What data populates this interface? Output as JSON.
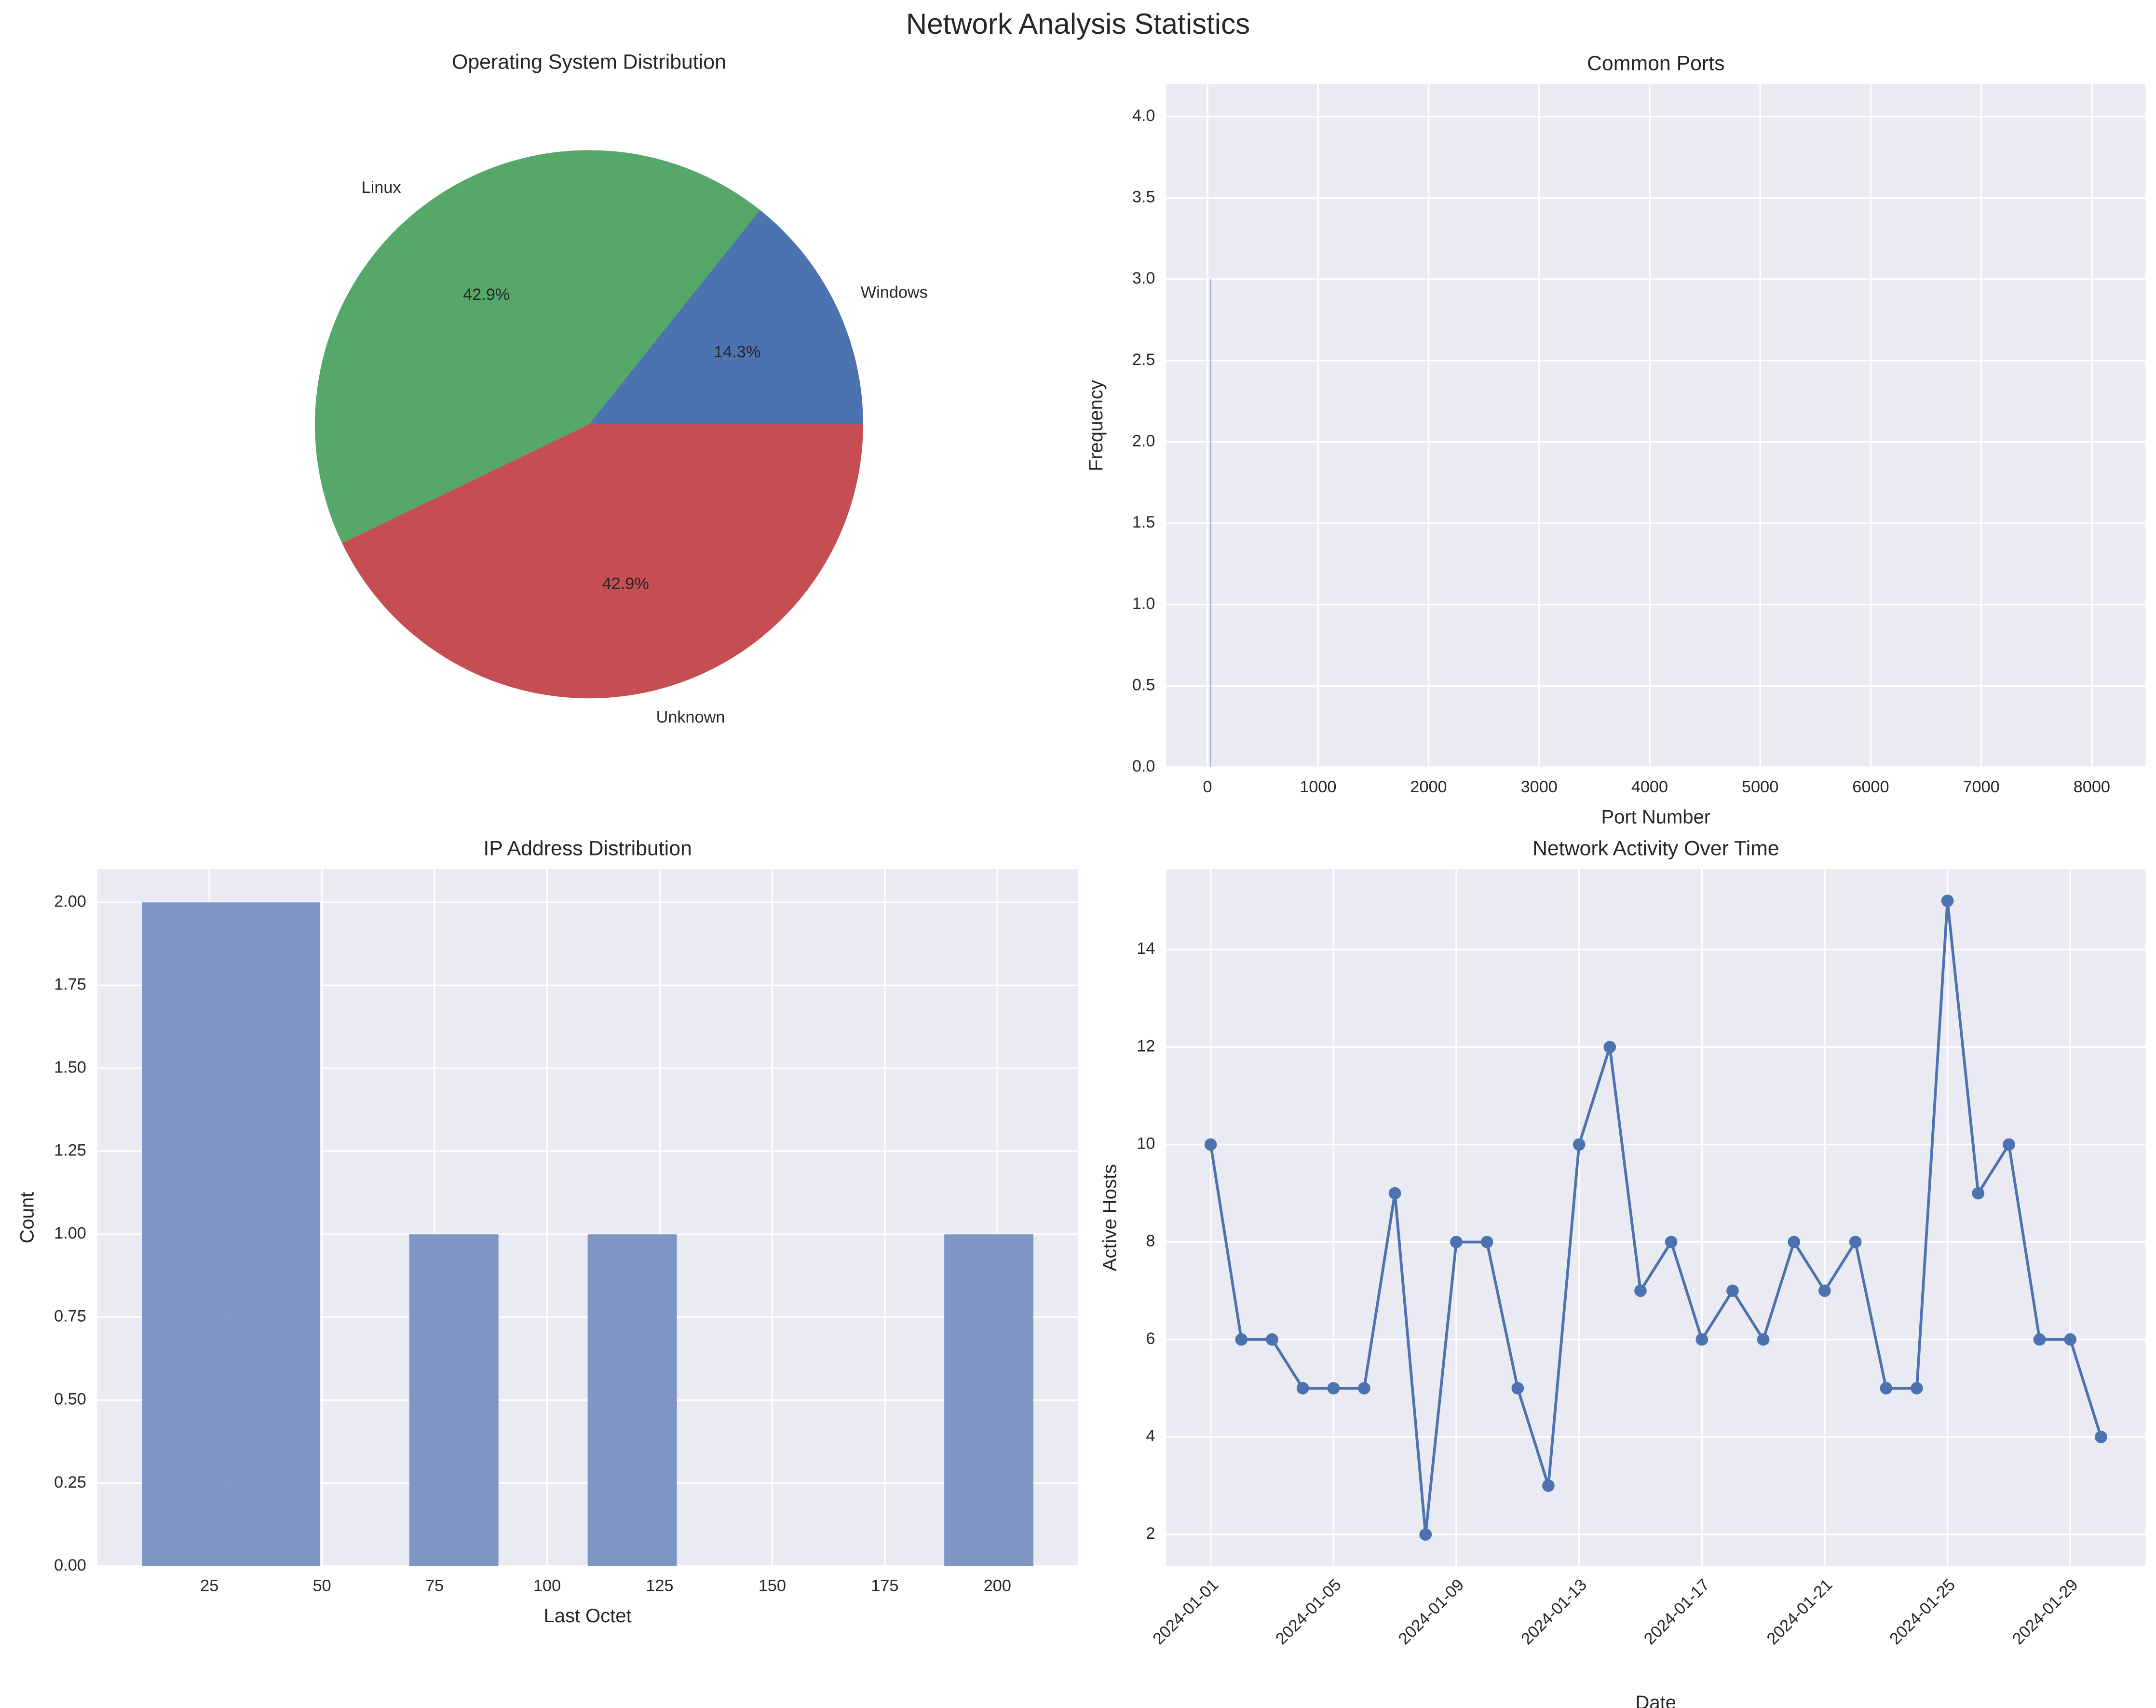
{
  "title": "Network Analysis Statistics",
  "chart_data": [
    {
      "type": "pie",
      "title": "Operating System Distribution",
      "categories": [
        "Windows",
        "Linux",
        "Unknown"
      ],
      "values": [
        14.3,
        42.9,
        42.9
      ],
      "value_labels": [
        "14.3%",
        "42.9%",
        "42.9%"
      ],
      "colors": [
        "#4c72b0",
        "#55a868",
        "#c44e52"
      ]
    },
    {
      "type": "histogram",
      "title": "Common Ports",
      "xlabel": "Port Number",
      "ylabel": "Frequency",
      "bins": [
        21,
        23
      ],
      "counts": [
        3
      ],
      "color": "#a3b1d6",
      "xlim": [
        -374,
        8486
      ],
      "xticks": [
        0,
        1000,
        2000,
        3000,
        4000,
        5000,
        6000,
        7000,
        8000
      ],
      "ylim": [
        0,
        4.2
      ],
      "yticks": [
        {
          "value": 0,
          "label": "0.0"
        },
        0.5,
        {
          "value": 1,
          "label": "1.0"
        },
        1.5,
        {
          "value": 2,
          "label": "2.0"
        },
        2.5,
        {
          "value": 3,
          "label": "3.0"
        },
        3.5,
        {
          "value": 4,
          "label": "4.0"
        }
      ],
      "grid": true
    },
    {
      "type": "histogram",
      "title": "IP Address Distribution",
      "xlabel": "Last Octet",
      "ylabel": "Count",
      "bins": [
        10,
        29.8,
        49.6,
        69.4,
        89.2,
        109,
        128.8,
        148.6,
        168.4,
        188.2,
        208
      ],
      "counts": [
        2,
        2,
        0,
        1,
        0,
        1,
        0,
        0,
        0,
        1
      ],
      "color": "#7d96c4",
      "xlim": [
        0.1,
        217.9
      ],
      "xticks": [
        25,
        50,
        75,
        100,
        125,
        150,
        175,
        200
      ],
      "ylim": [
        0,
        2.1
      ],
      "yticks": [
        {
          "value": 0,
          "label": "0.00"
        },
        0.25,
        {
          "value": 0.5,
          "label": "0.50"
        },
        0.75,
        {
          "value": 1,
          "label": "1.00"
        },
        1.25,
        {
          "value": 1.5,
          "label": "1.50"
        },
        1.75,
        {
          "value": 2,
          "label": "2.00"
        }
      ],
      "grid": true
    },
    {
      "type": "line",
      "title": "Network Activity Over Time",
      "xlabel": "Date",
      "ylabel": "Active Hosts",
      "x": [
        "2024-01-01",
        "2024-01-02",
        "2024-01-03",
        "2024-01-04",
        "2024-01-05",
        "2024-01-06",
        "2024-01-07",
        "2024-01-08",
        "2024-01-09",
        "2024-01-10",
        "2024-01-11",
        "2024-01-12",
        "2024-01-13",
        "2024-01-14",
        "2024-01-15",
        "2024-01-16",
        "2024-01-17",
        "2024-01-18",
        "2024-01-19",
        "2024-01-20",
        "2024-01-21",
        "2024-01-22",
        "2024-01-23",
        "2024-01-24",
        "2024-01-25",
        "2024-01-26",
        "2024-01-27",
        "2024-01-28",
        "2024-01-29",
        "2024-01-30"
      ],
      "values": [
        10,
        6,
        6,
        5,
        5,
        5,
        9,
        2,
        8,
        8,
        5,
        3,
        10,
        12,
        7,
        8,
        6,
        7,
        6,
        8,
        7,
        8,
        5,
        5,
        15,
        9,
        10,
        6,
        6,
        4
      ],
      "color": "#4c72b0",
      "xticks": [
        "2024-01-01",
        "2024-01-05",
        "2024-01-09",
        "2024-01-13",
        "2024-01-17",
        "2024-01-21",
        "2024-01-25",
        "2024-01-29"
      ],
      "ylim": [
        1.35,
        15.65
      ],
      "yticks": [
        2,
        4,
        6,
        8,
        10,
        12,
        14
      ],
      "grid": true
    }
  ]
}
